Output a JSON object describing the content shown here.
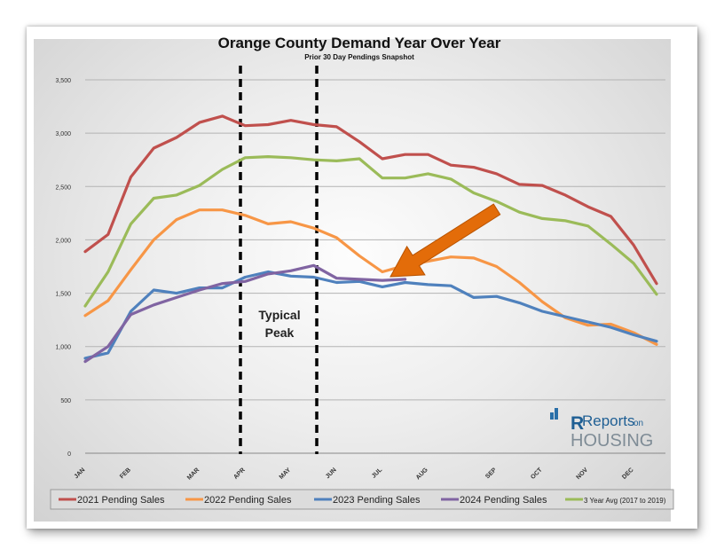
{
  "chart_data": {
    "type": "line",
    "title": "Orange County Demand Year Over Year",
    "subtitle": "Prior 30 Day Pendings Snapshot",
    "xlabel": "",
    "ylabel": "",
    "ylim": [
      0,
      3500
    ],
    "yticks": [
      "0",
      "500",
      "1,000",
      "1,500",
      "2,000",
      "2,500",
      "3,000",
      "3,500"
    ],
    "x_tick_labels": [
      "JAN",
      "FEB",
      "MAR",
      "APR",
      "MAY",
      "JUN",
      "JUL",
      "AUG",
      "SEP",
      "OCT",
      "NOV",
      "DEC"
    ],
    "grid": true,
    "legend_position": "bottom",
    "series": [
      {
        "name": "2021 Pending Sales",
        "color": "#c0504d",
        "values": [
          1890,
          2050,
          2590,
          2860,
          2960,
          3100,
          3160,
          3070,
          3080,
          3120,
          3080,
          3060,
          2920,
          2760,
          2800,
          2800,
          2700,
          2680,
          2620,
          2520,
          2510,
          2420,
          2310,
          2220,
          1950,
          1590
        ]
      },
      {
        "name": "2022 Pending Sales",
        "color": "#f79646",
        "values": [
          1290,
          1430,
          1720,
          2000,
          2190,
          2280,
          2280,
          2230,
          2150,
          2170,
          2110,
          2020,
          1850,
          1700,
          1760,
          1800,
          1840,
          1830,
          1750,
          1600,
          1420,
          1270,
          1200,
          1210,
          1130,
          1020
        ]
      },
      {
        "name": "2023 Pending Sales",
        "color": "#4f81bd",
        "values": [
          890,
          940,
          1330,
          1530,
          1500,
          1550,
          1550,
          1650,
          1700,
          1660,
          1650,
          1600,
          1610,
          1560,
          1600,
          1580,
          1570,
          1460,
          1470,
          1410,
          1330,
          1280,
          1230,
          1180,
          1110,
          1050
        ]
      },
      {
        "name": "2024 Pending Sales",
        "color": "#8064a2",
        "values": [
          860,
          1000,
          1300,
          1390,
          1460,
          1530,
          1590,
          1610,
          1680,
          1710,
          1760,
          1640,
          1630,
          1620,
          1630
        ]
      },
      {
        "name": "3 Year Avg (2017 to 2019)",
        "color": "#9bbb59",
        "values": [
          1380,
          1700,
          2150,
          2390,
          2420,
          2510,
          2660,
          2770,
          2780,
          2770,
          2750,
          2740,
          2760,
          2580,
          2580,
          2620,
          2570,
          2440,
          2360,
          2260,
          2200,
          2180,
          2130,
          1960,
          1780,
          1490
        ]
      }
    ],
    "annotations": [
      {
        "text": "Typical",
        "color": "#222222"
      },
      {
        "text": "Peak",
        "color": "#222222"
      }
    ],
    "arrow_color": "#e36c09",
    "watermark": {
      "line1": "Reports",
      "line1b": "on",
      "line2": "HOUSING"
    }
  }
}
